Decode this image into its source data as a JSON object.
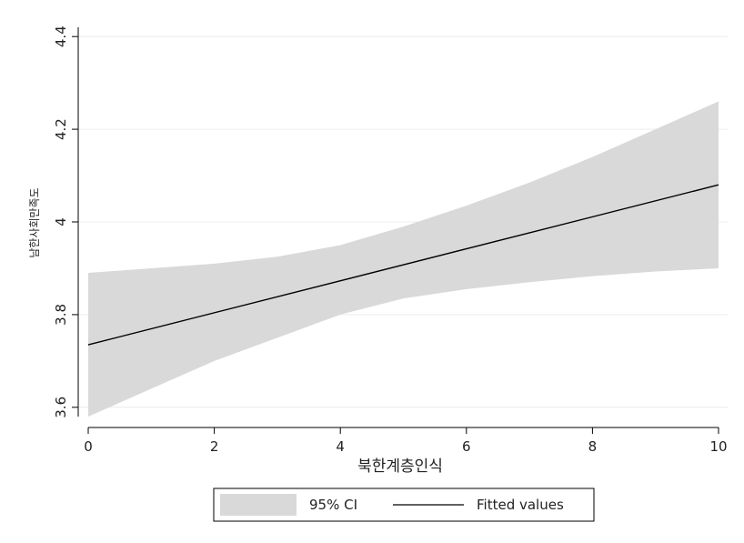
{
  "chart_data": {
    "type": "line",
    "title": "",
    "xlabel": "북한계층인식",
    "ylabel": "남한사회만족도",
    "xlim": [
      0,
      10
    ],
    "ylim": [
      3.58,
      4.42
    ],
    "xticks": [
      0,
      2,
      4,
      6,
      8,
      10
    ],
    "xtick_labels": [
      "0",
      "2",
      "4",
      "6",
      "8",
      "10"
    ],
    "yticks": [
      3.6,
      3.8,
      4.0,
      4.2,
      4.4
    ],
    "ytick_labels": [
      "3.6",
      "3.8",
      "4",
      "4.2",
      "4.4"
    ],
    "grid": true,
    "legend_position": "bottom",
    "series": [
      {
        "name": "95% CI",
        "kind": "band",
        "color": "#d9d9d9",
        "x": [
          0,
          1,
          2,
          3,
          4,
          5,
          6,
          7,
          8,
          9,
          10
        ],
        "lower": [
          3.58,
          3.64,
          3.7,
          3.75,
          3.8,
          3.835,
          3.855,
          3.87,
          3.883,
          3.893,
          3.9
        ],
        "upper": [
          3.89,
          3.9,
          3.91,
          3.925,
          3.95,
          3.99,
          4.035,
          4.085,
          4.14,
          4.2,
          4.26
        ]
      },
      {
        "name": "Fitted values",
        "kind": "line",
        "color": "#000000",
        "x": [
          0,
          10
        ],
        "y": [
          3.735,
          4.08
        ]
      }
    ]
  }
}
